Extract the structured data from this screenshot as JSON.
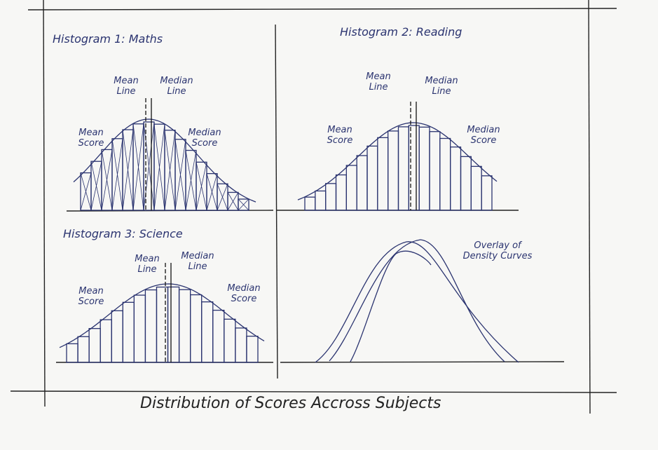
{
  "panels": [
    {
      "title": "Histogram 1: Maths",
      "mean_line": "Mean Line",
      "median_line": "Median Line",
      "mean_score": "Mean Score",
      "median_score": "Median Score"
    },
    {
      "title": "Histogram 2: Reading",
      "mean_line": "Mean Line",
      "median_line": "Median Line",
      "mean_score": "Mean Score",
      "median_score": "Median Score"
    },
    {
      "title": "Histogram 3: Science",
      "mean_line": "Mean Line",
      "median_line": "Median Line",
      "mean_score": "Mean Score",
      "median_score": "Median Score"
    }
  ],
  "overlay": {
    "label": "Overlay of Density Curves"
  },
  "caption": "Distribution of Scores Accross Subjects"
}
